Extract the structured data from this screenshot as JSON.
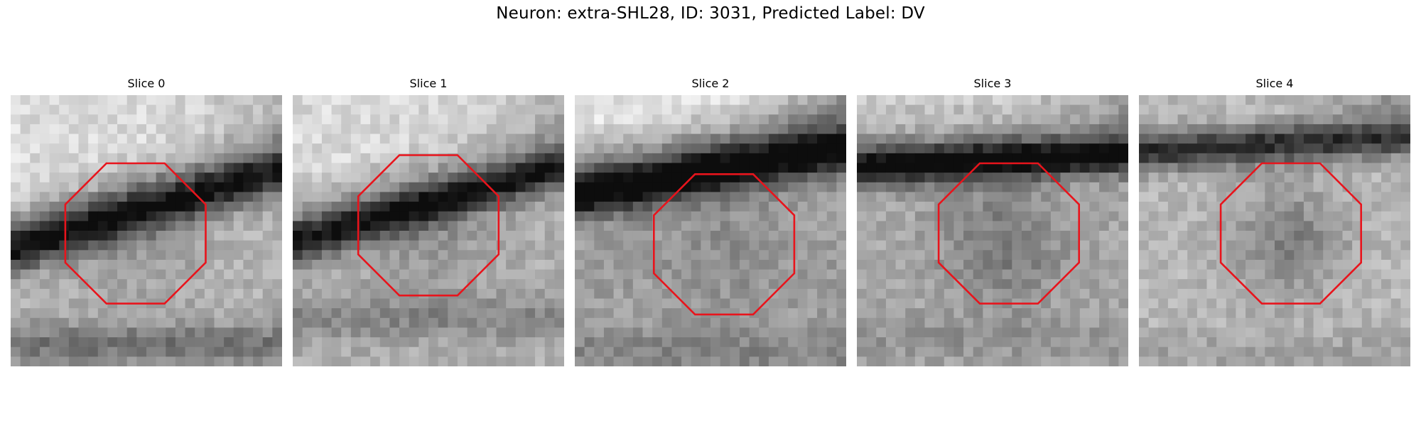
{
  "figure": {
    "title": "Neuron: extra-SHL28, ID: 3031, Predicted Label: DV",
    "outline_color": "#e8141c"
  },
  "panels": [
    {
      "title": "Slice 0"
    },
    {
      "title": "Slice 1"
    },
    {
      "title": "Slice 2"
    },
    {
      "title": "Slice 3"
    },
    {
      "title": "Slice 4"
    }
  ]
}
